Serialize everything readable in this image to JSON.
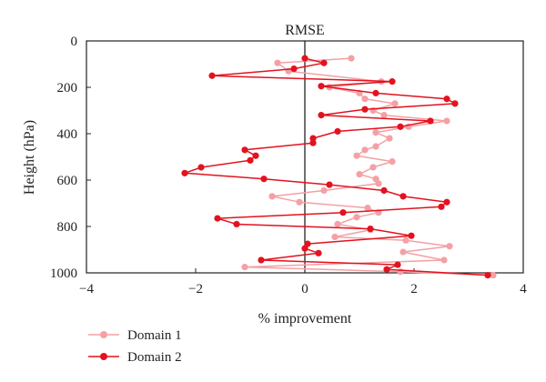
{
  "chart_data": {
    "type": "line",
    "title": "RMSE",
    "xlabel": "% improvement",
    "ylabel": "Height (hPa)",
    "xlim": [
      -4,
      4
    ],
    "ylim": [
      0,
      1000
    ],
    "y_inverted": true,
    "xticks": [
      -4,
      -2,
      0,
      2,
      4
    ],
    "yticks": [
      0,
      200,
      400,
      600,
      800,
      1000
    ],
    "grid": false,
    "zero_line": true,
    "legend_position": "bottom-left",
    "series": [
      {
        "name": "Domain 1",
        "color": "#f4a0a5",
        "points": [
          [
            0.85,
            75
          ],
          [
            -0.5,
            95
          ],
          [
            -0.3,
            130
          ],
          [
            1.4,
            175
          ],
          [
            0.45,
            200
          ],
          [
            1.0,
            225
          ],
          [
            1.1,
            250
          ],
          [
            1.65,
            270
          ],
          [
            1.25,
            300
          ],
          [
            1.45,
            320
          ],
          [
            2.6,
            345
          ],
          [
            1.9,
            370
          ],
          [
            1.3,
            395
          ],
          [
            1.55,
            420
          ],
          [
            1.3,
            455
          ],
          [
            1.1,
            470
          ],
          [
            0.95,
            495
          ],
          [
            1.6,
            520
          ],
          [
            1.25,
            545
          ],
          [
            1.0,
            575
          ],
          [
            1.3,
            595
          ],
          [
            1.35,
            615
          ],
          [
            0.35,
            645
          ],
          [
            -0.6,
            670
          ],
          [
            -0.1,
            695
          ],
          [
            1.15,
            720
          ],
          [
            1.35,
            740
          ],
          [
            0.95,
            760
          ],
          [
            0.6,
            790
          ],
          [
            1.2,
            815
          ],
          [
            0.55,
            845
          ],
          [
            1.85,
            860
          ],
          [
            2.65,
            885
          ],
          [
            1.8,
            910
          ],
          [
            2.55,
            945
          ],
          [
            -1.1,
            975
          ],
          [
            1.75,
            995
          ],
          [
            3.45,
            1010
          ]
        ]
      },
      {
        "name": "Domain 2",
        "color": "#e3121f",
        "points": [
          [
            0.0,
            75
          ],
          [
            0.35,
            95
          ],
          [
            -0.2,
            120
          ],
          [
            -1.7,
            150
          ],
          [
            1.6,
            175
          ],
          [
            0.3,
            195
          ],
          [
            1.3,
            225
          ],
          [
            2.6,
            250
          ],
          [
            2.75,
            270
          ],
          [
            1.1,
            295
          ],
          [
            0.3,
            320
          ],
          [
            2.3,
            345
          ],
          [
            1.75,
            370
          ],
          [
            0.6,
            390
          ],
          [
            0.15,
            420
          ],
          [
            0.15,
            440
          ],
          [
            -1.1,
            470
          ],
          [
            -0.9,
            495
          ],
          [
            -1.0,
            515
          ],
          [
            -1.9,
            545
          ],
          [
            -2.2,
            570
          ],
          [
            -0.75,
            595
          ],
          [
            0.45,
            620
          ],
          [
            1.45,
            645
          ],
          [
            1.8,
            670
          ],
          [
            2.6,
            695
          ],
          [
            2.5,
            715
          ],
          [
            0.7,
            740
          ],
          [
            -1.6,
            765
          ],
          [
            -1.25,
            790
          ],
          [
            1.2,
            810
          ],
          [
            1.95,
            840
          ],
          [
            0.05,
            875
          ],
          [
            0.0,
            895
          ],
          [
            0.25,
            915
          ],
          [
            -0.8,
            945
          ],
          [
            1.7,
            965
          ],
          [
            1.5,
            985
          ],
          [
            3.35,
            1010
          ]
        ]
      }
    ]
  }
}
